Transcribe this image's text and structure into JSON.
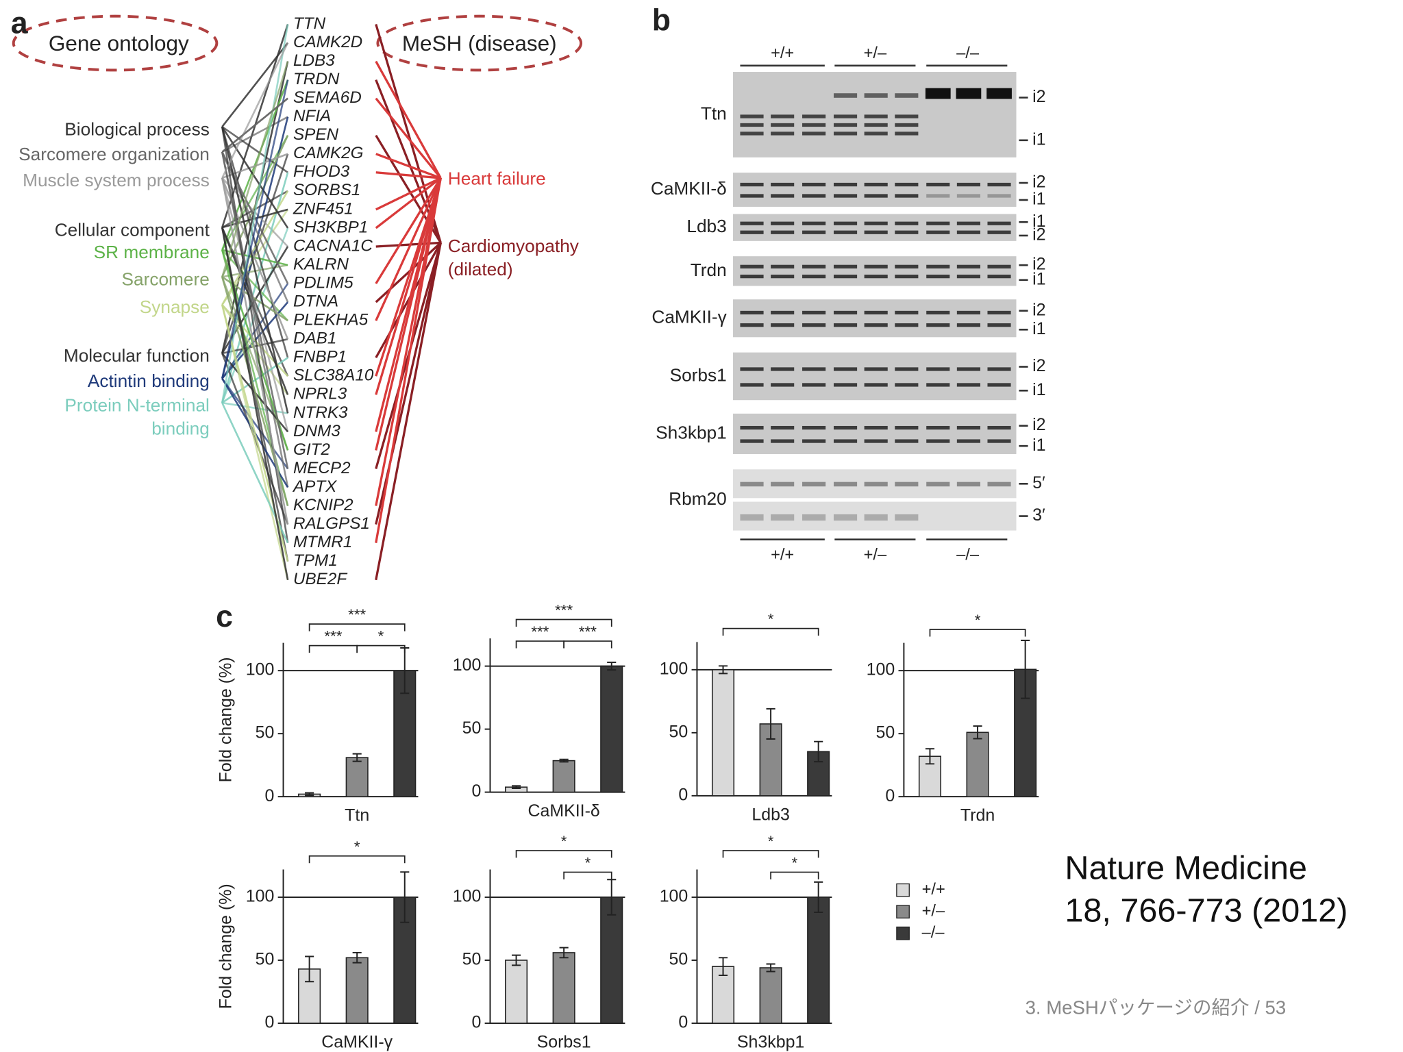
{
  "panel_a": {
    "label": "a",
    "left_header": "Gene ontology",
    "right_header": "MeSH (disease)",
    "go_terms": [
      {
        "lines": [
          "Biological process"
        ],
        "color": "#333333"
      },
      {
        "lines": [
          "Sarcomere organization"
        ],
        "color": "#666666"
      },
      {
        "lines": [
          "Muscle system process"
        ],
        "color": "#9a9a9a"
      },
      {
        "lines": [
          "Cellular component"
        ],
        "color": "#333333"
      },
      {
        "lines": [
          "SR membrane"
        ],
        "color": "#5cb247"
      },
      {
        "lines": [
          "Sarcomere"
        ],
        "color": "#86a36a"
      },
      {
        "lines": [
          "Synapse"
        ],
        "color": "#c2d68a"
      },
      {
        "lines": [
          "Molecular function"
        ],
        "color": "#333333"
      },
      {
        "lines": [
          "Actintin binding"
        ],
        "color": "#1f3a7a"
      },
      {
        "lines": [
          "Protein N-terminal",
          "binding"
        ],
        "color": "#7ccdbd"
      }
    ],
    "genes": [
      "TTN",
      "CAMK2D",
      "LDB3",
      "TRDN",
      "SEMA6D",
      "NFIA",
      "SPEN",
      "CAMK2G",
      "FHOD3",
      "SORBS1",
      "ZNF451",
      "SH3KBP1",
      "CACNA1C",
      "KALRN",
      "PDLIM5",
      "DTNA",
      "PLEKHA5",
      "DAB1",
      "FNBP1",
      "SLC38A10",
      "NPRL3",
      "NTRK3",
      "DNM3",
      "GIT2",
      "MECP2",
      "APTX",
      "KCNIP2",
      "RALGPS1",
      "MTMR1",
      "TPM1",
      "UBE2F"
    ],
    "mesh_terms": [
      {
        "lines": [
          "Heart failure"
        ],
        "color": "#d93a3a"
      },
      {
        "lines": [
          "Cardiomyopathy",
          "(dilated)"
        ],
        "color": "#8a1f24"
      }
    ]
  },
  "panel_b": {
    "label": "b",
    "genotypes": [
      "+/+",
      "+/–",
      "–/–"
    ],
    "rows": [
      {
        "gene": "Ttn",
        "isoforms": [
          "i2",
          "i1"
        ]
      },
      {
        "gene": "CaMKII-δ",
        "isoforms": [
          "i2",
          "i1"
        ]
      },
      {
        "gene": "Ldb3",
        "isoforms": [
          "i1",
          "i2"
        ]
      },
      {
        "gene": "Trdn",
        "isoforms": [
          "i2",
          "i1"
        ]
      },
      {
        "gene": "CaMKII-γ",
        "isoforms": [
          "i2",
          "i1"
        ]
      },
      {
        "gene": "Sorbs1",
        "isoforms": [
          "i2",
          "i1"
        ]
      },
      {
        "gene": "Sh3kbp1",
        "isoforms": [
          "i2",
          "i1"
        ]
      },
      {
        "gene": "Rbm20",
        "isoforms": [
          "5′",
          "3′"
        ]
      }
    ]
  },
  "panel_c_label": "c",
  "chart_data": [
    {
      "type": "bar",
      "xlabel": "Ttn",
      "ylabel": "Fold change (%)",
      "values": [
        2,
        31,
        100
      ],
      "errors": [
        1,
        3,
        18
      ],
      "ylim": [
        0,
        122
      ],
      "yticks": [
        0,
        50,
        100
      ],
      "brackets": [
        {
          "label": "***",
          "from": 0,
          "to": 2
        },
        {
          "label": "***",
          "from": 0,
          "to": 1
        },
        {
          "label": "*",
          "from": 1,
          "to": 2
        }
      ]
    },
    {
      "type": "bar",
      "xlabel": "CaMKII-δ",
      "values": [
        4,
        25,
        100
      ],
      "errors": [
        1,
        1,
        3
      ],
      "ylim": [
        0,
        122
      ],
      "yticks": [
        0,
        50,
        100
      ],
      "brackets": [
        {
          "label": "***",
          "from": 0,
          "to": 2
        },
        {
          "label": "***",
          "from": 0,
          "to": 1
        },
        {
          "label": "***",
          "from": 1,
          "to": 2
        }
      ]
    },
    {
      "type": "bar",
      "xlabel": "Ldb3",
      "values": [
        100,
        57,
        35
      ],
      "errors": [
        3,
        12,
        8
      ],
      "ylim": [
        0,
        122
      ],
      "yticks": [
        0,
        50,
        100
      ],
      "brackets": [
        {
          "label": "*",
          "from": 0,
          "to": 2
        }
      ]
    },
    {
      "type": "bar",
      "xlabel": "Trdn",
      "values": [
        32,
        51,
        101
      ],
      "errors": [
        6,
        5,
        23
      ],
      "ylim": [
        0,
        122
      ],
      "yticks": [
        0,
        50,
        100
      ],
      "brackets": [
        {
          "label": "*",
          "from": 0,
          "to": 2
        }
      ]
    },
    {
      "type": "bar",
      "xlabel": "CaMKII-γ",
      "ylabel": "Fold change (%)",
      "values": [
        43,
        52,
        100
      ],
      "errors": [
        10,
        4,
        20
      ],
      "ylim": [
        0,
        122
      ],
      "yticks": [
        0,
        50,
        100
      ],
      "brackets": [
        {
          "label": "*",
          "from": 0,
          "to": 2
        }
      ]
    },
    {
      "type": "bar",
      "xlabel": "Sorbs1",
      "values": [
        50,
        56,
        100
      ],
      "errors": [
        4,
        4,
        14
      ],
      "ylim": [
        0,
        122
      ],
      "yticks": [
        0,
        50,
        100
      ],
      "brackets": [
        {
          "label": "*",
          "from": 0,
          "to": 2
        },
        {
          "label": "*",
          "from": 1,
          "to": 2
        }
      ]
    },
    {
      "type": "bar",
      "xlabel": "Sh3kbp1",
      "values": [
        45,
        44,
        100
      ],
      "errors": [
        7,
        3,
        12
      ],
      "ylim": [
        0,
        122
      ],
      "yticks": [
        0,
        50,
        100
      ],
      "brackets": [
        {
          "label": "*",
          "from": 0,
          "to": 2
        },
        {
          "label": "*",
          "from": 1,
          "to": 2
        }
      ]
    }
  ],
  "legend": [
    {
      "label": "+/+",
      "color": "#d9d9d9"
    },
    {
      "label": "+/–",
      "color": "#8a8a8a"
    },
    {
      "label": "–/–",
      "color": "#3a3a3a"
    }
  ],
  "citation": [
    "Nature Medicine",
    "18, 766-773 (2012)"
  ],
  "footer": "3. MeSHパッケージの紹介 / 53"
}
